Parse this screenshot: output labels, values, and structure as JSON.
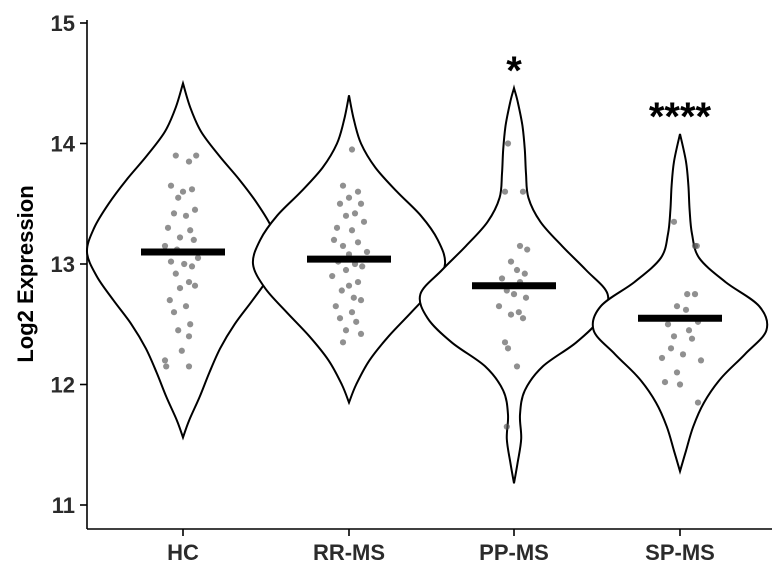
{
  "chart_data": {
    "type": "violin",
    "title": "",
    "xlabel": "",
    "ylabel": "Log2 Expression",
    "ylim": [
      10.9,
      15.0
    ],
    "yticks": [
      11,
      12,
      13,
      14,
      15
    ],
    "categories": [
      "HC",
      "RR-MS",
      "PP-MS",
      "SP-MS"
    ],
    "groups": [
      {
        "name": "HC",
        "median": 13.1,
        "significance": "",
        "violin": [
          [
            11.56,
            0.0
          ],
          [
            11.7,
            0.05
          ],
          [
            11.9,
            0.14
          ],
          [
            12.1,
            0.22
          ],
          [
            12.3,
            0.31
          ],
          [
            12.5,
            0.43
          ],
          [
            12.7,
            0.58
          ],
          [
            12.9,
            0.72
          ],
          [
            13.1,
            0.8
          ],
          [
            13.3,
            0.74
          ],
          [
            13.5,
            0.62
          ],
          [
            13.7,
            0.47
          ],
          [
            13.9,
            0.3
          ],
          [
            14.1,
            0.15
          ],
          [
            14.3,
            0.06
          ],
          [
            14.5,
            0.0
          ]
        ],
        "points": [
          [
            -0.12,
            13.9
          ],
          [
            0.22,
            13.9
          ],
          [
            0.1,
            13.85
          ],
          [
            -0.2,
            13.65
          ],
          [
            0.0,
            13.6
          ],
          [
            0.15,
            13.62
          ],
          [
            -0.08,
            13.55
          ],
          [
            0.2,
            13.45
          ],
          [
            -0.15,
            13.42
          ],
          [
            0.05,
            13.4
          ],
          [
            -0.25,
            13.3
          ],
          [
            0.12,
            13.28
          ],
          [
            -0.05,
            13.22
          ],
          [
            0.18,
            13.2
          ],
          [
            -0.3,
            13.15
          ],
          [
            -0.1,
            13.12
          ],
          [
            0.08,
            13.1
          ],
          [
            0.25,
            13.05
          ],
          [
            -0.2,
            13.02
          ],
          [
            0.02,
            13.0
          ],
          [
            0.15,
            12.98
          ],
          [
            -0.12,
            12.92
          ],
          [
            0.1,
            12.85
          ],
          [
            -0.05,
            12.8
          ],
          [
            0.2,
            12.82
          ],
          [
            -0.22,
            12.7
          ],
          [
            0.05,
            12.65
          ],
          [
            -0.15,
            12.6
          ],
          [
            0.12,
            12.5
          ],
          [
            -0.08,
            12.45
          ],
          [
            0.1,
            12.4
          ],
          [
            -0.02,
            12.28
          ],
          [
            -0.3,
            12.2
          ],
          [
            -0.28,
            12.15
          ],
          [
            0.1,
            12.15
          ]
        ]
      },
      {
        "name": "RR-MS",
        "median": 13.04,
        "significance": "",
        "violin": [
          [
            11.85,
            0.0
          ],
          [
            12.0,
            0.06
          ],
          [
            12.2,
            0.17
          ],
          [
            12.4,
            0.33
          ],
          [
            12.6,
            0.52
          ],
          [
            12.8,
            0.7
          ],
          [
            13.0,
            0.8
          ],
          [
            13.2,
            0.74
          ],
          [
            13.4,
            0.6
          ],
          [
            13.6,
            0.4
          ],
          [
            13.8,
            0.22
          ],
          [
            14.0,
            0.1
          ],
          [
            14.2,
            0.04
          ],
          [
            14.4,
            0.0
          ]
        ],
        "points": [
          [
            0.05,
            13.95
          ],
          [
            -0.1,
            13.65
          ],
          [
            0.15,
            13.6
          ],
          [
            0.0,
            13.55
          ],
          [
            0.2,
            13.5
          ],
          [
            -0.15,
            13.5
          ],
          [
            0.1,
            13.42
          ],
          [
            -0.05,
            13.4
          ],
          [
            0.25,
            13.35
          ],
          [
            -0.2,
            13.3
          ],
          [
            0.05,
            13.28
          ],
          [
            -0.25,
            13.2
          ],
          [
            0.15,
            13.18
          ],
          [
            -0.1,
            13.15
          ],
          [
            0.3,
            13.1
          ],
          [
            0.0,
            13.08
          ],
          [
            -0.18,
            13.02
          ],
          [
            0.1,
            13.0
          ],
          [
            0.22,
            12.98
          ],
          [
            -0.05,
            12.95
          ],
          [
            -0.28,
            12.9
          ],
          [
            0.15,
            12.85
          ],
          [
            0.0,
            12.82
          ],
          [
            -0.12,
            12.78
          ],
          [
            0.08,
            12.72
          ],
          [
            0.2,
            12.7
          ],
          [
            -0.22,
            12.65
          ],
          [
            0.05,
            12.6
          ],
          [
            -0.15,
            12.55
          ],
          [
            0.12,
            12.52
          ],
          [
            -0.05,
            12.45
          ],
          [
            0.2,
            12.42
          ],
          [
            -0.1,
            12.35
          ]
        ]
      },
      {
        "name": "PP-MS",
        "median": 12.82,
        "significance": "*",
        "violin": [
          [
            11.18,
            0.0
          ],
          [
            11.35,
            0.03
          ],
          [
            11.55,
            0.06
          ],
          [
            11.75,
            0.05
          ],
          [
            11.95,
            0.09
          ],
          [
            12.15,
            0.24
          ],
          [
            12.35,
            0.52
          ],
          [
            12.55,
            0.72
          ],
          [
            12.75,
            0.78
          ],
          [
            12.95,
            0.6
          ],
          [
            13.15,
            0.4
          ],
          [
            13.35,
            0.22
          ],
          [
            13.55,
            0.12
          ],
          [
            13.75,
            0.1
          ],
          [
            13.95,
            0.09
          ],
          [
            14.15,
            0.07
          ],
          [
            14.35,
            0.03
          ],
          [
            14.46,
            0.0
          ]
        ],
        "points": [
          [
            -0.1,
            14.0
          ],
          [
            -0.15,
            13.6
          ],
          [
            0.15,
            13.6
          ],
          [
            0.1,
            13.15
          ],
          [
            0.22,
            13.12
          ],
          [
            -0.05,
            13.02
          ],
          [
            0.05,
            12.95
          ],
          [
            0.18,
            12.92
          ],
          [
            -0.2,
            12.88
          ],
          [
            0.1,
            12.85
          ],
          [
            -0.12,
            12.78
          ],
          [
            0.0,
            12.75
          ],
          [
            0.2,
            12.72
          ],
          [
            -0.25,
            12.65
          ],
          [
            0.08,
            12.6
          ],
          [
            -0.05,
            12.58
          ],
          [
            0.15,
            12.55
          ],
          [
            -0.15,
            12.35
          ],
          [
            -0.1,
            12.3
          ],
          [
            0.05,
            12.15
          ],
          [
            -0.12,
            11.65
          ]
        ]
      },
      {
        "name": "SP-MS",
        "median": 12.55,
        "significance": "****",
        "violin": [
          [
            11.28,
            0.0
          ],
          [
            11.45,
            0.05
          ],
          [
            11.65,
            0.11
          ],
          [
            11.85,
            0.2
          ],
          [
            12.05,
            0.34
          ],
          [
            12.25,
            0.54
          ],
          [
            12.45,
            0.72
          ],
          [
            12.65,
            0.66
          ],
          [
            12.85,
            0.38
          ],
          [
            13.05,
            0.16
          ],
          [
            13.25,
            0.1
          ],
          [
            13.45,
            0.08
          ],
          [
            13.65,
            0.07
          ],
          [
            13.85,
            0.05
          ],
          [
            14.08,
            0.0
          ]
        ],
        "points": [
          [
            -0.1,
            13.35
          ],
          [
            0.25,
            13.15
          ],
          [
            0.28,
            13.15
          ],
          [
            0.25,
            12.75
          ],
          [
            0.12,
            12.75
          ],
          [
            -0.05,
            12.65
          ],
          [
            0.1,
            12.62
          ],
          [
            0.0,
            12.55
          ],
          [
            -0.2,
            12.5
          ],
          [
            0.3,
            12.52
          ],
          [
            0.15,
            12.45
          ],
          [
            -0.1,
            12.4
          ],
          [
            0.2,
            12.38
          ],
          [
            -0.15,
            12.3
          ],
          [
            0.05,
            12.25
          ],
          [
            -0.3,
            12.22
          ],
          [
            0.35,
            12.2
          ],
          [
            -0.05,
            12.1
          ],
          [
            -0.25,
            12.02
          ],
          [
            0.0,
            12.0
          ],
          [
            0.3,
            11.85
          ]
        ]
      }
    ],
    "grid": false,
    "legend": "none",
    "colors": {
      "violin_stroke": "#000000",
      "violin_fill": "#ffffff",
      "point": "#555555",
      "median": "#000000",
      "axis": "#000000"
    }
  }
}
